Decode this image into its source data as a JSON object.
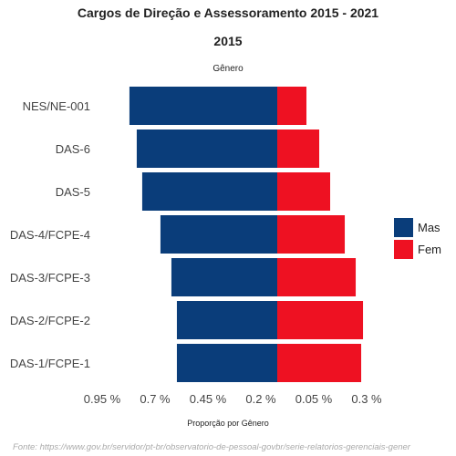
{
  "title": "Cargos de Direção e Assessoramento  2015 - 2021",
  "subtitle": "2015",
  "source": "Fonte: https://www.gov.br/servidor/pt-br/observatorio-de-pessoal-govbr/serie-relatorios-gerenciais-gener",
  "colors": {
    "mas": "#0a3d7a",
    "fem": "#ee1122"
  },
  "chart_data": {
    "type": "bar",
    "orientation": "horizontal",
    "facet_label": "Gênero",
    "xlabel": "Proporção por Gênero",
    "x_ticks": [
      "0.95 %",
      "0.7 %",
      "0.45 %",
      "0.2 %",
      "0.05 %",
      "0.3 %"
    ],
    "xlim": [
      -0.95,
      0.45
    ],
    "categories": [
      "NES/NE-001",
      "DAS-6",
      "DAS-5",
      "DAS-4/FCPE-4",
      "DAS-3/FCPE-3",
      "DAS-2/FCPE-2",
      "DAS-1/FCPE-1"
    ],
    "series": [
      {
        "name": "Mas",
        "values": [
          -0.81,
          -0.77,
          -0.74,
          -0.64,
          -0.58,
          -0.55,
          -0.55
        ]
      },
      {
        "name": "Fem",
        "values": [
          0.16,
          0.23,
          0.29,
          0.37,
          0.43,
          0.47,
          0.46
        ]
      }
    ],
    "legend_position": "right"
  }
}
